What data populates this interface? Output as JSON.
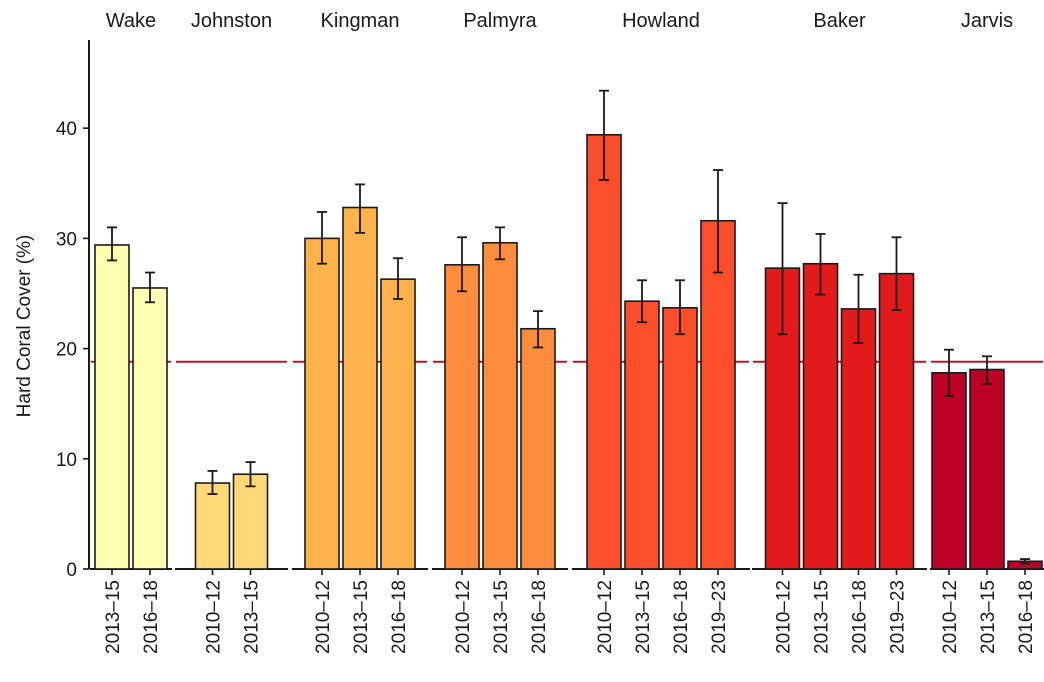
{
  "chart_data": {
    "type": "bar",
    "ylabel": "Hard Coral Cover (%)",
    "xlabel": "",
    "ylim": [
      0,
      48
    ],
    "yticks": [
      0,
      10,
      20,
      30,
      40
    ],
    "reference_line": 18.8,
    "reference_color": "#b2182b",
    "grid": false,
    "facets": [
      {
        "name": "Wake",
        "color": "#ffffb2",
        "categories": [
          "2013–15",
          "2016–18"
        ],
        "values": [
          29.4,
          25.5
        ],
        "err_low": [
          28.0,
          24.2
        ],
        "err_high": [
          31.0,
          26.9
        ]
      },
      {
        "name": "Johnston",
        "color": "#fed976",
        "categories": [
          "2010–12",
          "2013–15"
        ],
        "values": [
          7.8,
          8.6
        ],
        "err_low": [
          6.8,
          7.5
        ],
        "err_high": [
          8.9,
          9.7
        ]
      },
      {
        "name": "Kingman",
        "color": "#feb24c",
        "categories": [
          "2010–12",
          "2013–15",
          "2016–18"
        ],
        "values": [
          30.0,
          32.8,
          26.3
        ],
        "err_low": [
          27.7,
          30.5,
          24.5
        ],
        "err_high": [
          32.4,
          34.9,
          28.2
        ]
      },
      {
        "name": "Palmyra",
        "color": "#fd8d3c",
        "categories": [
          "2010–12",
          "2013–15",
          "2016–18"
        ],
        "values": [
          27.6,
          29.6,
          21.8
        ],
        "err_low": [
          25.2,
          28.1,
          20.1
        ],
        "err_high": [
          30.1,
          31.0,
          23.4
        ]
      },
      {
        "name": "Howland",
        "color": "#fc4e2a",
        "categories": [
          "2010–12",
          "2013–15",
          "2016–18",
          "2019–23"
        ],
        "values": [
          39.4,
          24.3,
          23.7,
          31.6
        ],
        "err_low": [
          35.3,
          22.4,
          21.3,
          26.9
        ],
        "err_high": [
          43.4,
          26.2,
          26.2,
          36.2
        ]
      },
      {
        "name": "Baker",
        "color": "#e31a1c",
        "categories": [
          "2010–12",
          "2013–15",
          "2016–18",
          "2019–23"
        ],
        "values": [
          27.3,
          27.7,
          23.6,
          26.8
        ],
        "err_low": [
          21.3,
          24.9,
          20.5,
          23.5
        ],
        "err_high": [
          33.2,
          30.4,
          26.7,
          30.1
        ]
      },
      {
        "name": "Jarvis",
        "color": "#bd0026",
        "categories": [
          "2010–12",
          "2013–15",
          "2016–18"
        ],
        "values": [
          17.8,
          18.1,
          0.7
        ],
        "err_low": [
          15.7,
          16.8,
          0.5
        ],
        "err_high": [
          19.9,
          19.3,
          0.9
        ]
      }
    ]
  }
}
